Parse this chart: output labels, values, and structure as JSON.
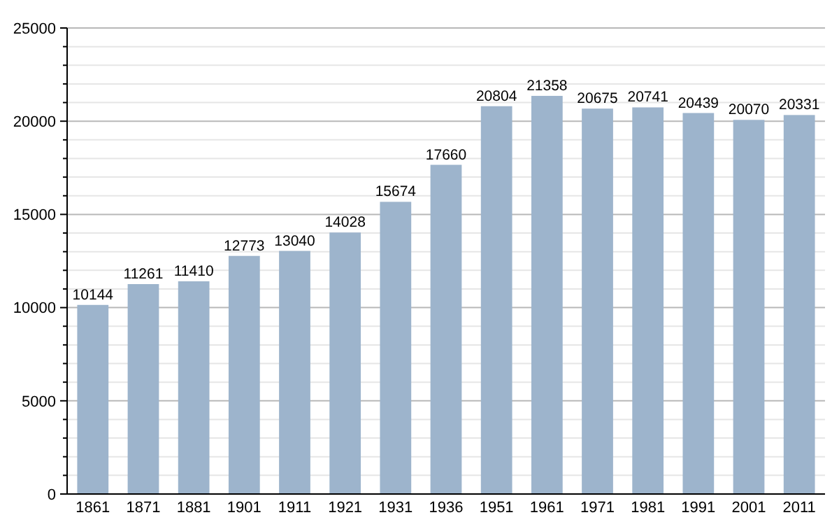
{
  "chart_data": {
    "type": "bar",
    "categories": [
      "1861",
      "1871",
      "1881",
      "1901",
      "1911",
      "1921",
      "1931",
      "1936",
      "1951",
      "1961",
      "1971",
      "1981",
      "1991",
      "2001",
      "2011"
    ],
    "values": [
      10144,
      11261,
      11410,
      12773,
      13040,
      14028,
      15674,
      17660,
      20804,
      21358,
      20675,
      20741,
      20439,
      20070,
      20331
    ],
    "color": "#9db4cc",
    "data_labels": true,
    "grid": "y",
    "ylim": [
      0,
      25000
    ],
    "yticks": [
      0,
      {
        "value": 1000,
        "label": null
      },
      {
        "value": 2000,
        "label": null
      },
      {
        "value": 3000,
        "label": null
      },
      {
        "value": 4000,
        "label": null
      },
      5000,
      {
        "value": 6000,
        "label": null
      },
      {
        "value": 7000,
        "label": null
      },
      {
        "value": 8000,
        "label": null
      },
      {
        "value": 9000,
        "label": null
      },
      10000,
      {
        "value": 11000,
        "label": null
      },
      {
        "value": 12000,
        "label": null
      },
      {
        "value": 13000,
        "label": null
      },
      {
        "value": 14000,
        "label": null
      },
      15000,
      {
        "value": 16000,
        "label": null
      },
      {
        "value": 17000,
        "label": null
      },
      {
        "value": 18000,
        "label": null
      },
      {
        "value": 19000,
        "label": null
      },
      20000,
      {
        "value": 21000,
        "label": null
      },
      {
        "value": 22000,
        "label": null
      },
      {
        "value": 23000,
        "label": null
      },
      {
        "value": 24000,
        "label": null
      },
      25000
    ]
  }
}
